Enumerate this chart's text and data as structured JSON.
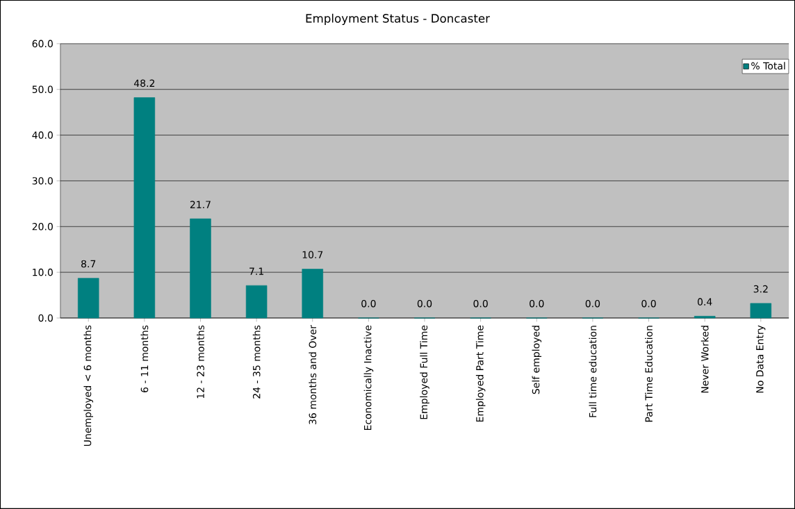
{
  "chart_data": {
    "type": "bar",
    "title": "Employment Status - Doncaster",
    "categories": [
      "Unemployed < 6 months",
      "6 - 11 months",
      "12 - 23 months",
      "24 - 35 months",
      "36 months and Over",
      "Economically Inactive",
      "Employed Full Time",
      "Employed Part Time",
      "Self employed",
      "Full time education",
      "Part Time Education",
      "Never Worked",
      "No Data Entry"
    ],
    "series": [
      {
        "name": "% Total",
        "color": "#008080",
        "values": [
          8.7,
          48.2,
          21.7,
          7.1,
          10.7,
          0.0,
          0.0,
          0.0,
          0.0,
          0.0,
          0.0,
          0.4,
          3.2
        ],
        "value_labels": [
          "8.7",
          "48.2",
          "21.7",
          "7.1",
          "10.7",
          "0.0",
          "0.0",
          "0.0",
          "0.0",
          "0.0",
          "0.0",
          "0.4",
          "3.2"
        ]
      }
    ],
    "ylim": [
      0,
      60
    ],
    "yticks": [
      {
        "value": 0,
        "label": "0.0"
      },
      {
        "value": 10,
        "label": "10.0"
      },
      {
        "value": 20,
        "label": "20.0"
      },
      {
        "value": 30,
        "label": "30.0"
      },
      {
        "value": 40,
        "label": "40.0"
      },
      {
        "value": 50,
        "label": "50.0"
      },
      {
        "value": 60,
        "label": "60.0"
      }
    ],
    "grid": "y",
    "legend": "top right"
  }
}
